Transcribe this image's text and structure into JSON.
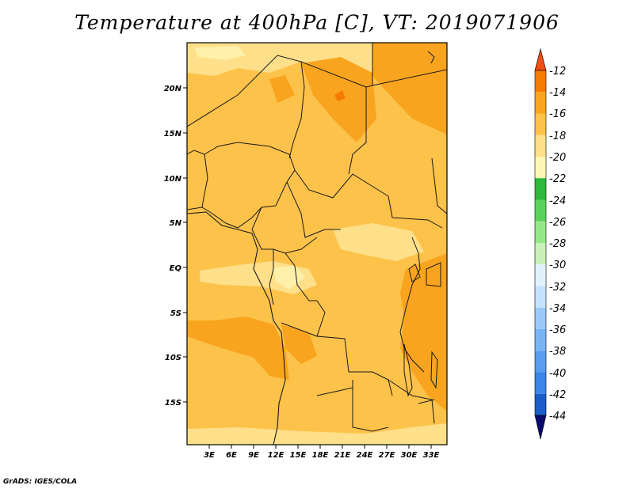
{
  "title": "Temperature at 400hPa [C], VT: 2019071906",
  "credit": "GrADS: IGES/COLA",
  "map": {
    "variable": "Temperature",
    "level": "400hPa",
    "units": "C",
    "valid_time": "2019071906",
    "lat_labels": [
      "20N",
      "15N",
      "10N",
      "5N",
      "EQ",
      "5S",
      "10S",
      "15S"
    ],
    "lon_labels": [
      "3E",
      "6E",
      "9E",
      "12E",
      "15E",
      "18E",
      "21E",
      "24E",
      "27E",
      "30E",
      "33E"
    ]
  },
  "colorbar": {
    "labels": [
      "-12",
      "-14",
      "-16",
      "-18",
      "-20",
      "-22",
      "-24",
      "-26",
      "-28",
      "-30",
      "-32",
      "-34",
      "-36",
      "-38",
      "-40",
      "-42",
      "-44"
    ],
    "colors": [
      "#0a0a6e",
      "#0e3fa8",
      "#1a5cc8",
      "#2a72dc",
      "#3c86e8",
      "#5a9cf0",
      "#7ab4f5",
      "#9ccaf8",
      "#c4e2fb",
      "#e2f2fd",
      "#c8f0b8",
      "#96e68a",
      "#5ad25a",
      "#2eb83c",
      "#fef6b4",
      "#fee08a",
      "#fdc24a",
      "#f9a41e",
      "#f57c00",
      "#f04e14"
    ]
  }
}
